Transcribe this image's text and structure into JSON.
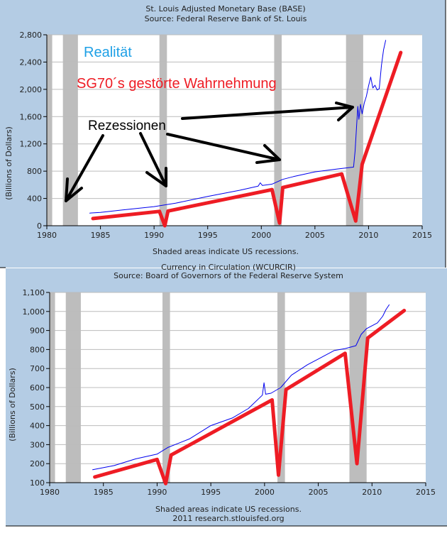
{
  "colors": {
    "panel": "#b4cce4",
    "plot": "#ffffff",
    "grid": "#bcbcbc",
    "recession": "#bdbdbd",
    "series": "#0000ee",
    "overlay": "#ee1c24",
    "realitaet": "#1ea0e6",
    "arrow": "#000000"
  },
  "chart_data": [
    {
      "type": "line",
      "title": "St. Louis Adjusted Monetary Base (BASE)",
      "subtitle": "Source: Federal Reserve Bank of St. Louis",
      "ylabel": "(Billions of Dollars)",
      "footer": "Shaded areas indicate US recessions.",
      "xlim": [
        1980,
        2015
      ],
      "ylim": [
        0,
        2800
      ],
      "xticks": [
        "1980",
        "1985",
        "1990",
        "1995",
        "2000",
        "2005",
        "2010",
        "2015"
      ],
      "yticks": [
        "0",
        "400",
        "800",
        "1,200",
        "1,600",
        "2,000",
        "2,400",
        "2,800"
      ],
      "grid": true,
      "recessions": [
        [
          1980.0,
          1980.5
        ],
        [
          1981.5,
          1982.9
        ],
        [
          1990.5,
          1991.2
        ],
        [
          2001.2,
          2001.9
        ],
        [
          2007.9,
          2009.5
        ]
      ],
      "series": [
        {
          "x": [
            1984,
            1985,
            1987,
            1990,
            1992,
            1995,
            1998,
            1999.7,
            1999.9,
            2000.1,
            2001,
            2002,
            2003,
            2005,
            2007,
            2008.6,
            2008.75,
            2008.9,
            2009,
            2009.1,
            2009.25,
            2009.4,
            2009.6,
            2009.8,
            2010,
            2010.2,
            2010.4,
            2010.6,
            2010.8,
            2011,
            2011.2,
            2011.4,
            2011.6
          ],
          "y": [
            185,
            195,
            230,
            280,
            330,
            430,
            520,
            580,
            630,
            590,
            610,
            680,
            720,
            790,
            830,
            860,
            1100,
            1500,
            1750,
            1560,
            1780,
            1640,
            1800,
            1900,
            2050,
            2180,
            2020,
            2060,
            1990,
            2010,
            2350,
            2580,
            2720
          ]
        },
        {
          "x": [
            1984.3,
            1990.5,
            1991.0,
            1991.3,
            2001.0,
            2001.7,
            2002.0,
            2007.5,
            2008.8,
            2009.4,
            2013.0
          ],
          "y": [
            105,
            210,
            0,
            215,
            530,
            40,
            560,
            760,
            70,
            900,
            2540
          ]
        }
      ],
      "annotations": [
        {
          "text": "Realität",
          "color": "#1ea0e6"
        },
        {
          "text": "SG70´s gestörte Wahrnehmung",
          "color": "#ee1c24"
        },
        {
          "text": "Rezessionen",
          "color": "#000000"
        }
      ]
    },
    {
      "type": "line",
      "title": "Currency in Circulation (WCURCIR)",
      "subtitle": "Source: Board of Governors of the Federal Reserve System",
      "ylabel": "(Billions of Dollars)",
      "footer": "Shaded areas indicate US recessions.",
      "footer2": "2011 research.stlouisfed.org",
      "xlim": [
        1980,
        2015
      ],
      "ylim": [
        100,
        1100
      ],
      "xticks": [
        "1980",
        "1985",
        "1990",
        "1995",
        "2000",
        "2005",
        "2010",
        "2015"
      ],
      "yticks": [
        "100",
        "200",
        "300",
        "400",
        "500",
        "600",
        "700",
        "800",
        "900",
        "1,000",
        "1,100"
      ],
      "grid": true,
      "recessions": [
        [
          1980.0,
          1980.5
        ],
        [
          1981.5,
          1982.9
        ],
        [
          1990.5,
          1991.2
        ],
        [
          2001.2,
          2001.9
        ],
        [
          2007.9,
          2009.5
        ]
      ],
      "series": [
        {
          "x": [
            1984,
            1986,
            1988,
            1990,
            1991,
            1993,
            1995,
            1997,
            1998.5,
            1999.8,
            1999.95,
            2000.1,
            2000.6,
            2001.5,
            2002.5,
            2004,
            2005,
            2006.5,
            2007.5,
            2008.5,
            2009,
            2009.5,
            2010.5,
            2011,
            2011.3,
            2011.6
          ],
          "y": [
            168,
            190,
            225,
            250,
            285,
            330,
            400,
            440,
            490,
            560,
            625,
            565,
            570,
            600,
            665,
            720,
            750,
            795,
            805,
            820,
            880,
            910,
            940,
            975,
            1010,
            1035
          ]
        },
        {
          "x": [
            1984.2,
            1990.0,
            1990.8,
            1991.3,
            2000.7,
            2001.3,
            2002.0,
            2007.5,
            2008.6,
            2009.6,
            2013.0
          ],
          "y": [
            130,
            222,
            95,
            245,
            535,
            140,
            590,
            780,
            200,
            860,
            1005
          ]
        }
      ]
    }
  ]
}
